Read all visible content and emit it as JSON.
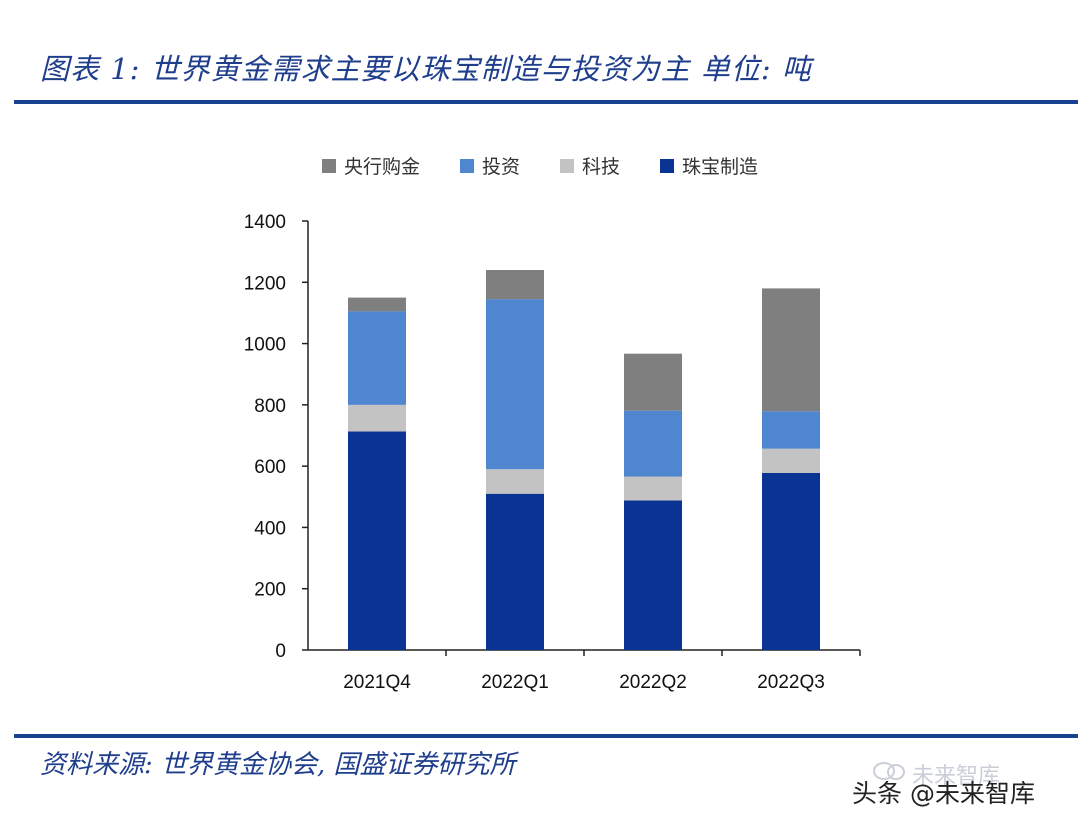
{
  "header": {
    "title": "图表 1:  世界黄金需求主要以珠宝制造与投资为主  单位: 吨"
  },
  "footer": {
    "source": "资料来源: 世界黄金协会, 国盛证券研究所"
  },
  "watermark": {
    "text": "头条 @未来智库",
    "faint_text": "未来智库"
  },
  "colors": {
    "central_bank": "#7f7f7f",
    "investment": "#4f86cf",
    "technology": "#c3c3c3",
    "jewelry": "#0a3494",
    "rule": "#18418f",
    "title": "#1f3e8c"
  },
  "chart_data": {
    "type": "bar",
    "stacked": true,
    "categories": [
      "2021Q4",
      "2022Q1",
      "2022Q2",
      "2022Q3"
    ],
    "series": [
      {
        "name": "珠宝制造",
        "values": [
          713,
          510,
          488,
          578
        ]
      },
      {
        "name": "科技",
        "values": [
          87,
          80,
          78,
          79
        ]
      },
      {
        "name": "投资",
        "values": [
          305,
          555,
          215,
          122
        ]
      },
      {
        "name": "央行购金",
        "values": [
          45,
          95,
          186,
          401
        ]
      }
    ],
    "legend_order": [
      "央行购金",
      "投资",
      "科技",
      "珠宝制造"
    ],
    "legend_position": "top",
    "ylim": [
      0,
      1400
    ],
    "yticks": [
      "0",
      "200",
      "400",
      "600",
      "800",
      "1000",
      "1200",
      "1400"
    ],
    "grid": false,
    "xlabel": "",
    "ylabel": ""
  }
}
